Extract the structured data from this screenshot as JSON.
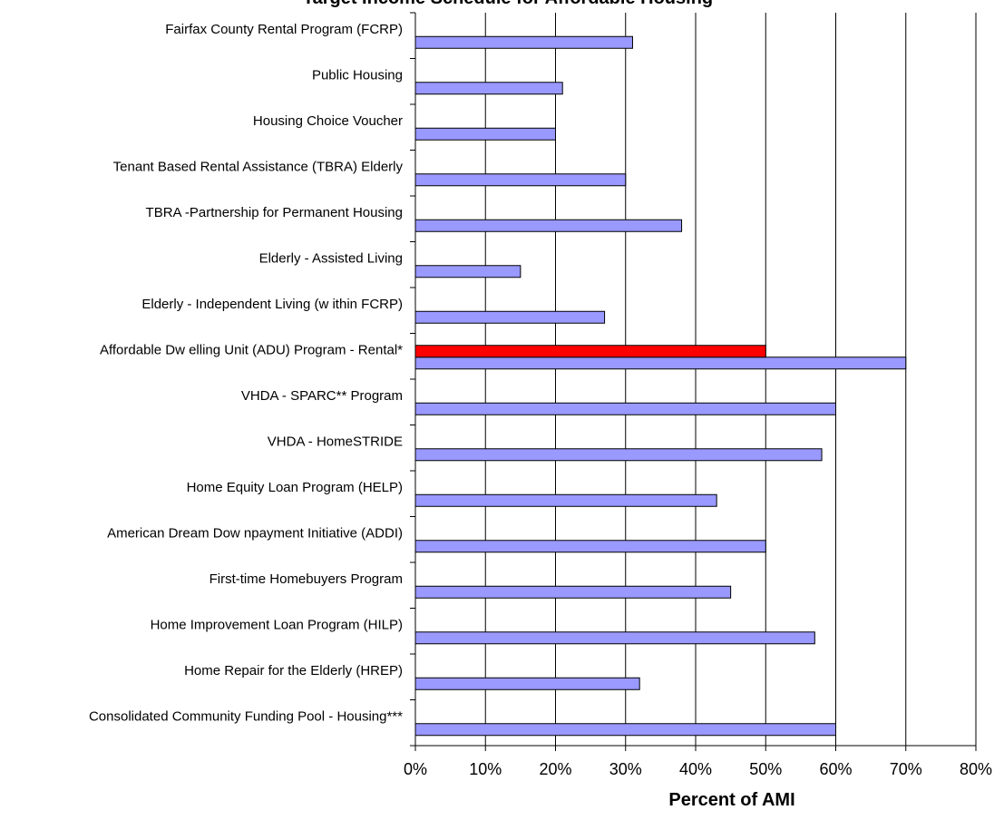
{
  "chart_data": {
    "type": "bar",
    "orientation": "horizontal",
    "title": "Target Income Schedule for Affordable Housing",
    "xlabel": "Percent of AMI",
    "ylabel": "",
    "xlim": [
      0,
      80
    ],
    "x_tick_values": [
      0,
      10,
      20,
      30,
      40,
      50,
      60,
      70,
      80
    ],
    "x_tick_labels": [
      "0%",
      "10%",
      "20%",
      "30%",
      "40%",
      "50%",
      "60%",
      "70%",
      "80%"
    ],
    "grid": "vertical",
    "legend": "none",
    "categories": [
      "Fairfax County Rental Program (FCRP)",
      "Public Housing",
      "Housing Choice Voucher",
      "Tenant Based Rental Assistance (TBRA) Elderly",
      "TBRA -Partnership for Permanent Housing",
      "Elderly - Assisted Living",
      "Elderly - Independent Living (w ithin FCRP)",
      "Affordable Dw elling Unit (ADU) Program - Rental*",
      "VHDA - SPARC** Program",
      "VHDA - HomeSTRIDE",
      "Home Equity Loan Program (HELP)",
      "American Dream Dow npayment Initiative (ADDI)",
      "First-time Homebuyers Program",
      "Home Improvement Loan Program (HILP)",
      "Home Repair for the Elderly (HREP)",
      "Consolidated Community Funding Pool - Housing***"
    ],
    "series": [
      {
        "color": "#9999ff",
        "values": [
          31,
          21,
          20,
          30,
          38,
          15,
          27,
          70,
          60,
          58,
          43,
          50,
          45,
          57,
          32,
          60
        ]
      },
      {
        "color": "#ff0000",
        "values": [
          null,
          null,
          null,
          null,
          null,
          null,
          null,
          50,
          null,
          null,
          null,
          null,
          null,
          null,
          null,
          null
        ]
      }
    ]
  }
}
